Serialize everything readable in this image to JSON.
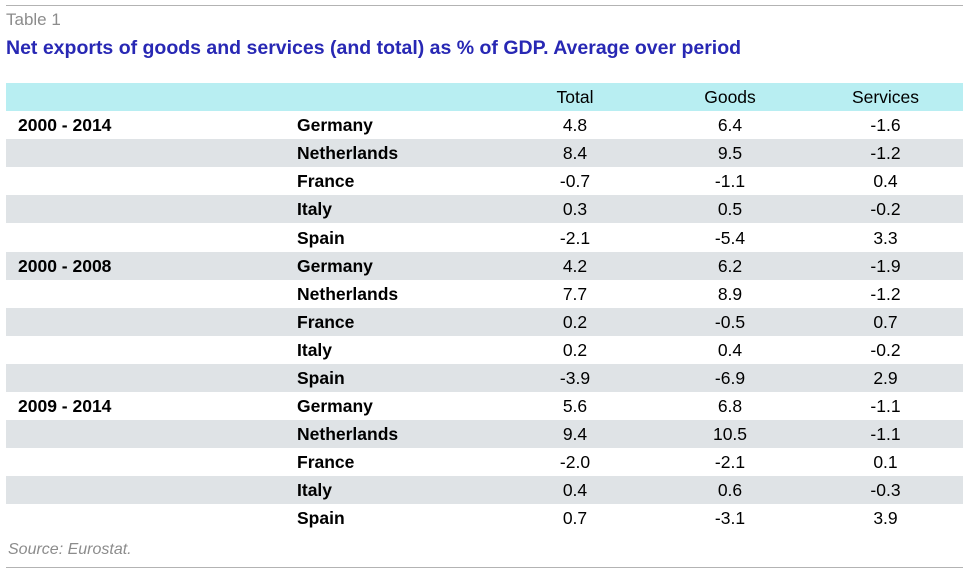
{
  "table": {
    "label": "Table 1",
    "title": "Net exports of goods and services (and total) as % of GDP. Average over period",
    "headers": [
      "",
      "",
      "Total",
      "Goods",
      "Services"
    ],
    "rows": [
      {
        "period": "2000 - 2014",
        "country": "Germany",
        "total": "4.8",
        "goods": "6.4",
        "services": "-1.6"
      },
      {
        "period": "",
        "country": "Netherlands",
        "total": "8.4",
        "goods": "9.5",
        "services": "-1.2"
      },
      {
        "period": "",
        "country": "France",
        "total": "-0.7",
        "goods": "-1.1",
        "services": "0.4"
      },
      {
        "period": "",
        "country": "Italy",
        "total": "0.3",
        "goods": "0.5",
        "services": "-0.2"
      },
      {
        "period": "",
        "country": "Spain",
        "total": "-2.1",
        "goods": "-5.4",
        "services": "3.3"
      },
      {
        "period": "2000 - 2008",
        "country": "Germany",
        "total": "4.2",
        "goods": "6.2",
        "services": "-1.9"
      },
      {
        "period": "",
        "country": "Netherlands",
        "total": "7.7",
        "goods": "8.9",
        "services": "-1.2"
      },
      {
        "period": "",
        "country": "France",
        "total": "0.2",
        "goods": "-0.5",
        "services": "0.7"
      },
      {
        "period": "",
        "country": "Italy",
        "total": "0.2",
        "goods": "0.4",
        "services": "-0.2"
      },
      {
        "period": "",
        "country": "Spain",
        "total": "-3.9",
        "goods": "-6.9",
        "services": "2.9"
      },
      {
        "period": "2009 - 2014",
        "country": "Germany",
        "total": "5.6",
        "goods": "6.8",
        "services": "-1.1"
      },
      {
        "period": "",
        "country": "Netherlands",
        "total": "9.4",
        "goods": "10.5",
        "services": "-1.1"
      },
      {
        "period": "",
        "country": "France",
        "total": "-2.0",
        "goods": "-2.1",
        "services": "0.1"
      },
      {
        "period": "",
        "country": "Italy",
        "total": "0.4",
        "goods": "0.6",
        "services": "-0.3"
      },
      {
        "period": "",
        "country": "Spain",
        "total": "0.7",
        "goods": "-3.1",
        "services": "3.9"
      }
    ],
    "source": "Source: Eurostat."
  },
  "colors": {
    "header_background": "#b8eef2",
    "shaded_row": "#dfe3e6",
    "title_text": "#2828b4",
    "muted_text": "#8c8c8c",
    "rule": "#b3b3b3"
  }
}
